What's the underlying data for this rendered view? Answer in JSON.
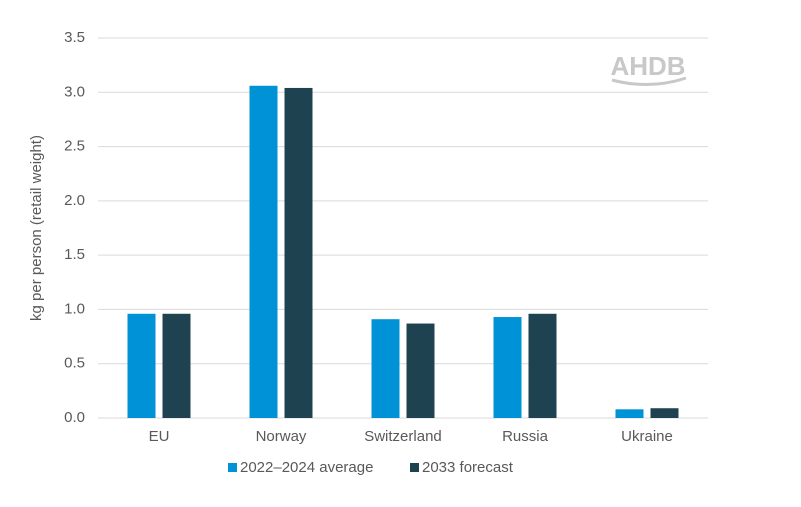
{
  "chart_data": {
    "type": "bar",
    "y_label": "kg per person (retail weight)",
    "watermark": "AHDB",
    "categories": [
      "EU",
      "Norway",
      "Switzerland",
      "Russia",
      "Ukraine"
    ],
    "series": [
      {
        "name": "2022–2024 average",
        "color": "#0092d6",
        "values": [
          0.96,
          3.06,
          0.91,
          0.93,
          0.08
        ]
      },
      {
        "name": "2033 forecast",
        "color": "#1f4251",
        "values": [
          0.96,
          3.04,
          0.87,
          0.96,
          0.09
        ]
      }
    ],
    "ylim": [
      0,
      3.5
    ],
    "yticks": [
      {
        "value": 0,
        "label": "0.0"
      },
      0.5,
      {
        "value": 1,
        "label": "1.0"
      },
      1.5,
      {
        "value": 2,
        "label": "2.0"
      },
      2.5,
      {
        "value": 3,
        "label": "3.0"
      },
      3.5
    ],
    "grid": true
  }
}
